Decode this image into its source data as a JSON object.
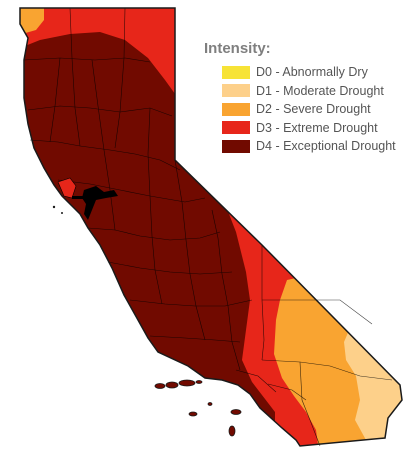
{
  "legend": {
    "title": "Intensity:",
    "items": [
      {
        "code": "D0",
        "label": "D0 - Abnormally Dry",
        "color": "#f7e336"
      },
      {
        "code": "D1",
        "label": "D1 - Moderate Drought",
        "color": "#fdd08a"
      },
      {
        "code": "D2",
        "label": "D2 - Severe Drought",
        "color": "#f9a431"
      },
      {
        "code": "D3",
        "label": "D3 - Extreme Drought",
        "color": "#e7261a"
      },
      {
        "code": "D4",
        "label": "D4 - Exceptional Drought",
        "color": "#710a00"
      }
    ]
  },
  "map": {
    "region": "California",
    "water_color": "#000000",
    "border_color": "#1a1a1a"
  }
}
